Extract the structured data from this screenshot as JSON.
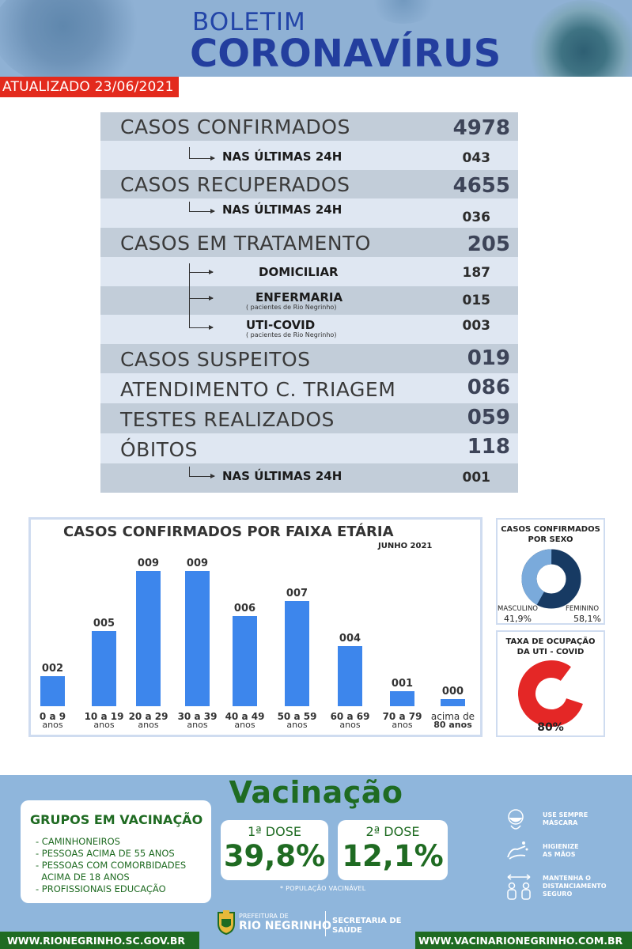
{
  "header": {
    "title_line1": "BOLETIM",
    "title_line2": "CORONAVÍRUS",
    "updated": "ATUALIZADO 23/06/2021"
  },
  "stats": {
    "confirmed": {
      "label": "CASOS CONFIRMADOS",
      "value": "4978",
      "last24_label": "NAS ÚLTIMAS 24H",
      "last24_value": "043"
    },
    "recovered": {
      "label": "CASOS RECUPERADOS",
      "value": "4655",
      "last24_label": "NAS ÚLTIMAS 24H",
      "last24_value": "036"
    },
    "treatment": {
      "label": "CASOS EM TRATAMENTO",
      "value": "205",
      "home": {
        "label": "DOMICILIAR",
        "value": "187"
      },
      "ward": {
        "label": "ENFERMARIA",
        "note": "( pacientes de Rio Negrinho)",
        "value": "015"
      },
      "icu": {
        "label": "UTI-COVID",
        "note": "( pacientes de Rio Negrinho)",
        "value": "003"
      }
    },
    "suspected": {
      "label": "CASOS SUSPEITOS",
      "value": "019"
    },
    "triage": {
      "label": "ATENDIMENTO C. TRIAGEM",
      "value": "086"
    },
    "tests": {
      "label": "TESTES REALIZADOS",
      "value": "059"
    },
    "deaths": {
      "label": "ÓBITOS",
      "value": "118",
      "last24_label": "NAS ÚLTIMAS 24H",
      "last24_value": "001"
    }
  },
  "chart_data": {
    "type": "bar",
    "title": "CASOS CONFIRMADOS POR FAIXA ETÁRIA",
    "subtitle": "JUNHO 2021",
    "categories": [
      {
        "top": "0 a 9",
        "bottom": "anos"
      },
      {
        "top": "10 a 19",
        "bottom": "anos"
      },
      {
        "top": "20 a 29",
        "bottom": "anos"
      },
      {
        "top": "30 a 39",
        "bottom": "anos"
      },
      {
        "top": "40 a 49",
        "bottom": "anos"
      },
      {
        "top": "50 a 59",
        "bottom": "anos"
      },
      {
        "top": "60 a 69",
        "bottom": "anos"
      },
      {
        "top": "70 a 79",
        "bottom": "anos"
      },
      {
        "top": "acima de",
        "bottom": "80 anos"
      }
    ],
    "values": [
      2,
      5,
      9,
      9,
      6,
      7,
      4,
      1,
      0
    ],
    "labels": [
      "002",
      "005",
      "009",
      "009",
      "006",
      "007",
      "004",
      "001",
      "000"
    ],
    "ylim": [
      0,
      9
    ],
    "bar_color": "#3d86ec"
  },
  "sex": {
    "title_line1": "CASOS CONFIRMADOS",
    "title_line2": "POR SEXO",
    "male_label": "MASCULINO",
    "male_value": "41,9%",
    "female_label": "FEMININO",
    "female_value": "58,1%",
    "male_fraction": 0.419,
    "male_color": "#7aaadb",
    "female_color": "#173a63"
  },
  "icu_rate": {
    "title_line1": "TAXA DE OCUPAÇÃO",
    "title_line2": "DA UTI - COVID",
    "value": "80%",
    "fraction": 0.8,
    "color": "#e42726"
  },
  "vaccination": {
    "title": "Vacinação",
    "groups_title": "GRUPOS EM VACINAÇÃO",
    "groups": [
      "- CAMINHONEIROS",
      "- PESSOAS ACIMA DE 55 ANOS",
      "- PESSOAS COM COMORBIDADES",
      "  ACIMA DE 18 ANOS",
      "- PROFISSIONAIS EDUCAÇÃO"
    ],
    "dose1_label": "1ª DOSE",
    "dose1_value": "39,8%",
    "dose2_label": "2ª DOSE",
    "dose2_value": "12,1%",
    "note": "* POPULAÇÃO VACINÁVEL",
    "tips": [
      {
        "line1": "USE SEMPRE",
        "line2": "MÁSCARA",
        "icon": "mask-icon"
      },
      {
        "line1": "HIGIENIZE",
        "line2": "AS MÃOS",
        "icon": "hand-wash-icon"
      },
      {
        "line1": "MANTENHA O",
        "line2": "DISTANCIAMENTO",
        "line3": "SEGURO",
        "icon": "distance-icon"
      }
    ]
  },
  "footer": {
    "left_url": "WWW.RIONEGRINHO.SC.GOV.BR",
    "right_url": "WWW.VACINARIONEGRINHO.COM.BR",
    "pref_small": "PREFEITURA DE",
    "pref_big": "RIO NEGRINHO",
    "sec_line1": "SECRETARIA DE",
    "sec_line2": "SAÚDE"
  }
}
